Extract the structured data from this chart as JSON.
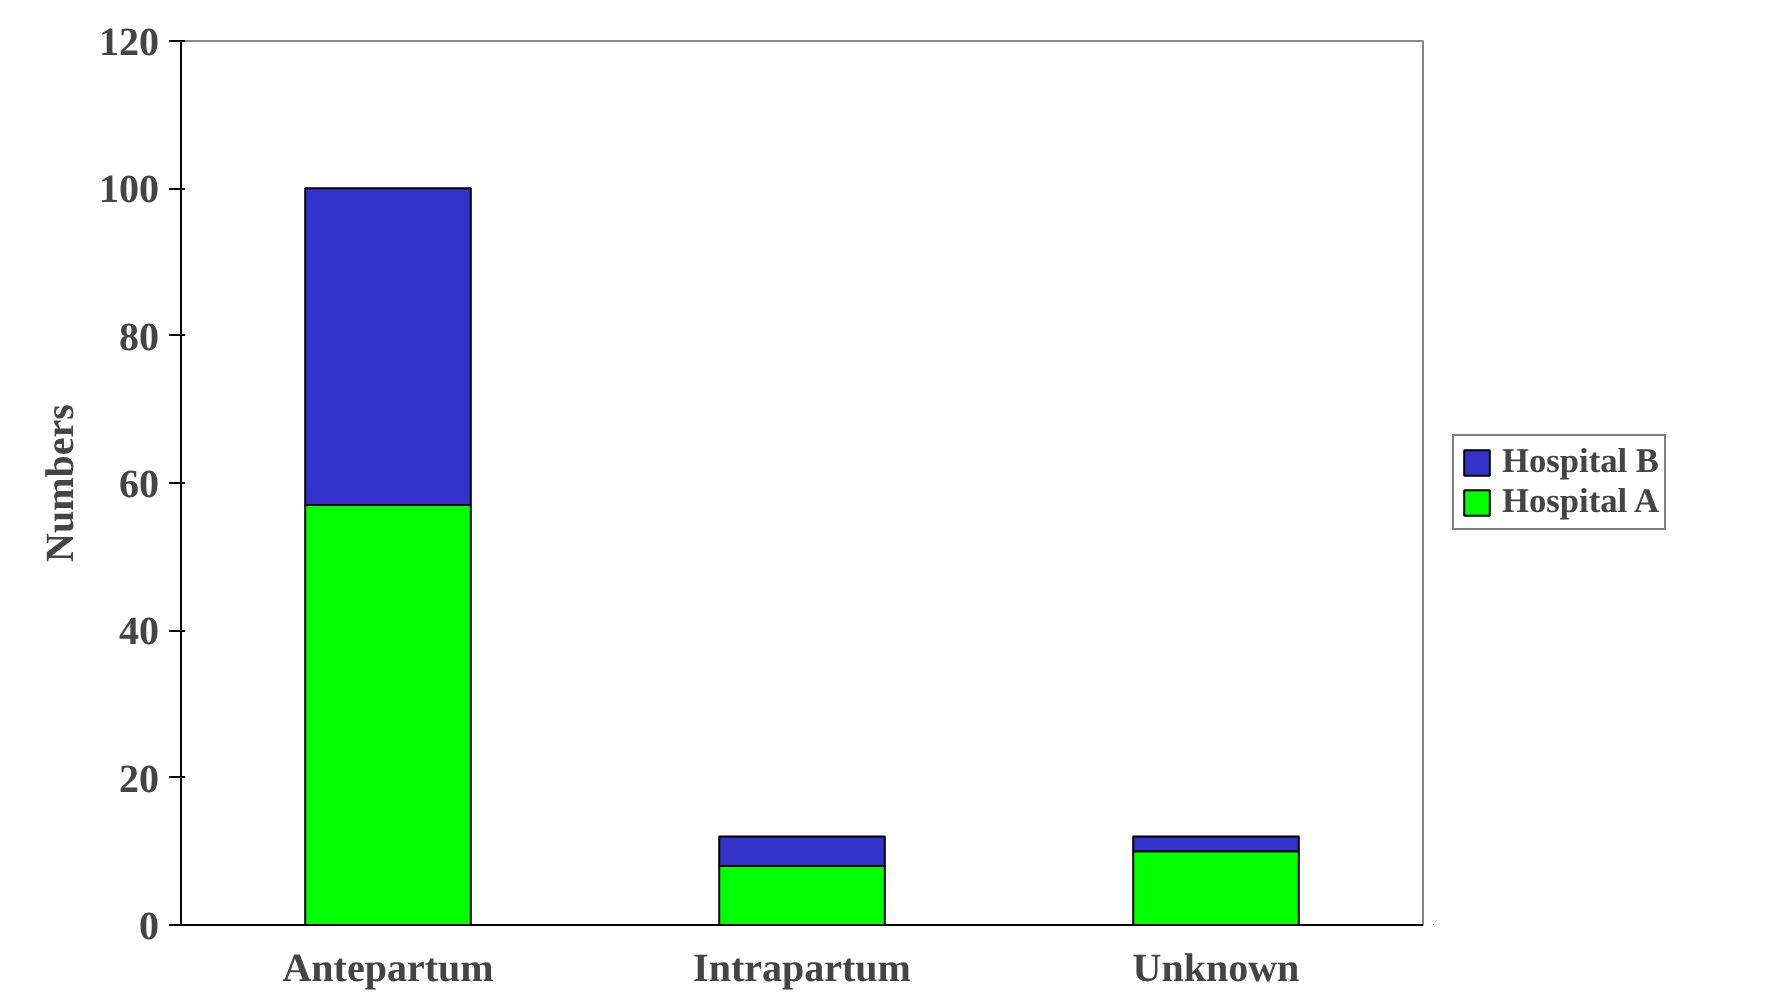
{
  "chart_data": {
    "type": "bar",
    "stacked": true,
    "ylabel": "Numbers",
    "categories": [
      "Antepartum",
      "Intrapartum",
      "Unknown"
    ],
    "series": [
      {
        "name": "Hospital A",
        "color": "#00ff00",
        "values": [
          57,
          8,
          10
        ]
      },
      {
        "name": "Hospital B",
        "color": "#3333cc",
        "values": [
          43,
          4,
          2
        ]
      }
    ],
    "ylim": [
      0,
      120
    ],
    "yticks": [
      0,
      20,
      40,
      60,
      80,
      100,
      120
    ],
    "grid": false,
    "legend": "right"
  }
}
